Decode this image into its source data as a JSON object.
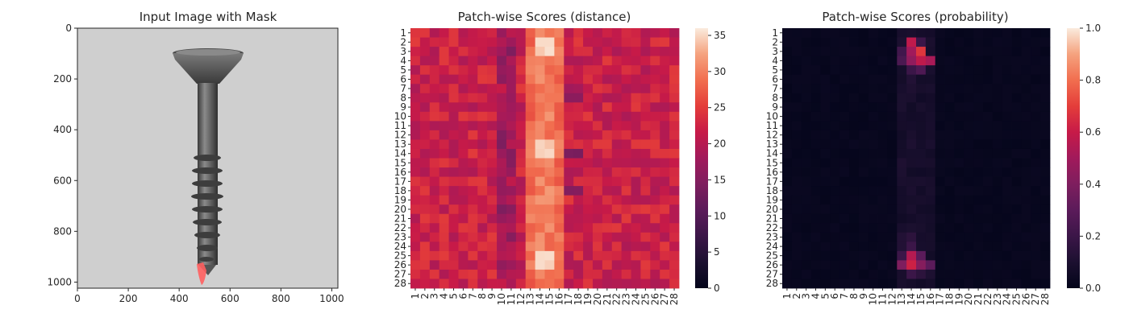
{
  "chart_data": [
    {
      "type": "image",
      "title": "Input Image with Mask",
      "x_ticks": [
        "0",
        "200",
        "400",
        "600",
        "800",
        "1000"
      ],
      "y_ticks": [
        "0",
        "200",
        "400",
        "600",
        "800",
        "1000"
      ],
      "xlim": [
        0,
        1024
      ],
      "ylim": [
        1024,
        0
      ],
      "mask_color": "#ff5f5f",
      "background_color": "#cfcfcf",
      "object": "screw"
    },
    {
      "type": "heatmap",
      "title": "Patch-wise Scores (distance)",
      "colormap": "rocket",
      "rows": [
        "1",
        "2",
        "3",
        "4",
        "5",
        "6",
        "7",
        "8",
        "9",
        "10",
        "11",
        "12",
        "13",
        "14",
        "15",
        "16",
        "17",
        "18",
        "19",
        "20",
        "21",
        "22",
        "23",
        "24",
        "25",
        "26",
        "27",
        "28"
      ],
      "cols": [
        "1",
        "2",
        "3",
        "4",
        "5",
        "6",
        "7",
        "8",
        "9",
        "10",
        "11",
        "12",
        "13",
        "14",
        "15",
        "16",
        "17",
        "18",
        "19",
        "20",
        "21",
        "22",
        "23",
        "24",
        "25",
        "26",
        "27",
        "28"
      ],
      "vmin": 0,
      "vmax": 36,
      "colorbar_ticks": [
        "0",
        "5",
        "10",
        "15",
        "20",
        "25",
        "30",
        "35"
      ],
      "pattern": {
        "base_value": 22,
        "bright_columns": [
          13,
          14,
          15,
          16
        ],
        "peak_rows": [
          2,
          3,
          13,
          14,
          25,
          26
        ],
        "peak_value": 34
      }
    },
    {
      "type": "heatmap",
      "title": "Patch-wise Scores (probability)",
      "colormap": "rocket",
      "rows": [
        "1",
        "2",
        "3",
        "4",
        "5",
        "6",
        "7",
        "8",
        "9",
        "10",
        "11",
        "12",
        "13",
        "14",
        "15",
        "16",
        "17",
        "18",
        "19",
        "20",
        "21",
        "22",
        "23",
        "24",
        "25",
        "26",
        "27",
        "28"
      ],
      "cols": [
        "1",
        "2",
        "3",
        "4",
        "5",
        "6",
        "7",
        "8",
        "9",
        "10",
        "11",
        "12",
        "13",
        "14",
        "15",
        "16",
        "17",
        "18",
        "19",
        "20",
        "21",
        "22",
        "23",
        "24",
        "25",
        "26",
        "27",
        "28"
      ],
      "vmin": 0,
      "vmax": 1,
      "colorbar_ticks": [
        "0.0",
        "0.2",
        "0.4",
        "0.6",
        "0.8",
        "1.0"
      ],
      "hotspots": [
        {
          "row": 2,
          "col": 14,
          "value": 0.58
        },
        {
          "row": 2,
          "col": 15,
          "value": 0.2
        },
        {
          "row": 3,
          "col": 14,
          "value": 0.5
        },
        {
          "row": 3,
          "col": 15,
          "value": 0.68
        },
        {
          "row": 3,
          "col": 13,
          "value": 0.22
        },
        {
          "row": 4,
          "col": 14,
          "value": 0.45
        },
        {
          "row": 4,
          "col": 15,
          "value": 0.58
        },
        {
          "row": 4,
          "col": 16,
          "value": 0.52
        },
        {
          "row": 4,
          "col": 13,
          "value": 0.25
        },
        {
          "row": 5,
          "col": 14,
          "value": 0.2
        },
        {
          "row": 5,
          "col": 15,
          "value": 0.26
        },
        {
          "row": 6,
          "col": 14,
          "value": 0.12
        },
        {
          "row": 23,
          "col": 13,
          "value": 0.12
        },
        {
          "row": 23,
          "col": 14,
          "value": 0.15
        },
        {
          "row": 24,
          "col": 14,
          "value": 0.2
        },
        {
          "row": 24,
          "col": 13,
          "value": 0.12
        },
        {
          "row": 25,
          "col": 13,
          "value": 0.2
        },
        {
          "row": 25,
          "col": 14,
          "value": 0.55
        },
        {
          "row": 25,
          "col": 15,
          "value": 0.3
        },
        {
          "row": 26,
          "col": 13,
          "value": 0.4
        },
        {
          "row": 26,
          "col": 14,
          "value": 0.62
        },
        {
          "row": 26,
          "col": 15,
          "value": 0.42
        },
        {
          "row": 26,
          "col": 16,
          "value": 0.3
        },
        {
          "row": 27,
          "col": 14,
          "value": 0.2
        },
        {
          "row": 27,
          "col": 15,
          "value": 0.15
        }
      ]
    }
  ]
}
